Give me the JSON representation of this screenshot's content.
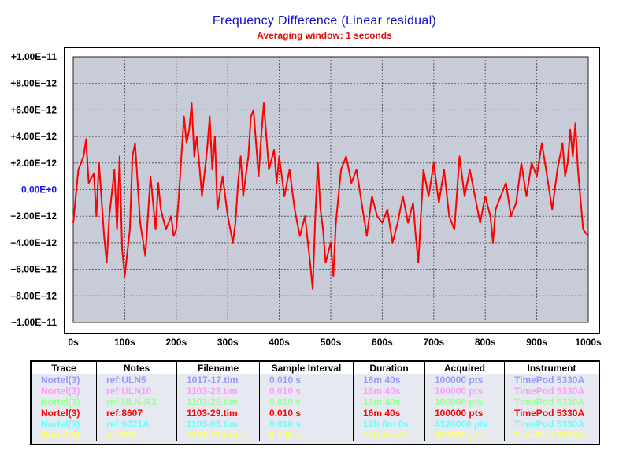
{
  "chart_data": {
    "type": "line",
    "title": "Frequency Difference  (Linear residual)",
    "subtitle": "Averaging window: 1 seconds",
    "xlabel": "",
    "ylabel": "",
    "xlim": [
      0,
      1000
    ],
    "ylim": [
      -1e-11,
      1e-11
    ],
    "grid": true,
    "x_ticks": [
      "0s",
      "100s",
      "200s",
      "300s",
      "400s",
      "500s",
      "600s",
      "700s",
      "800s",
      "900s",
      "1000s"
    ],
    "y_ticks": [
      "+1.00E−11",
      "+8.00E−12",
      "+6.00E−12",
      "+4.00E−12",
      "+2.00E−12",
      "0.00E+0",
      "−2.00E−12",
      "−4.00E−12",
      "−6.00E−12",
      "−8.00E−12",
      "−1.00E−11"
    ],
    "series": [
      {
        "name": "Nortel(3)",
        "color": "#ff0000",
        "x": [
          0,
          10,
          20,
          25,
          30,
          40,
          45,
          50,
          60,
          65,
          70,
          80,
          85,
          90,
          95,
          100,
          110,
          115,
          120,
          125,
          130,
          140,
          150,
          155,
          160,
          165,
          170,
          180,
          190,
          195,
          200,
          205,
          210,
          215,
          220,
          225,
          230,
          235,
          240,
          250,
          260,
          265,
          270,
          275,
          280,
          290,
          300,
          310,
          315,
          320,
          325,
          330,
          340,
          345,
          350,
          360,
          365,
          370,
          380,
          390,
          395,
          400,
          410,
          420,
          430,
          440,
          450,
          460,
          465,
          470,
          475,
          480,
          485,
          490,
          500,
          505,
          510,
          520,
          530,
          540,
          550,
          560,
          570,
          580,
          590,
          600,
          610,
          620,
          630,
          640,
          650,
          660,
          665,
          670,
          680,
          690,
          700,
          710,
          720,
          730,
          740,
          750,
          760,
          770,
          780,
          790,
          800,
          810,
          815,
          820,
          830,
          840,
          850,
          860,
          870,
          880,
          890,
          900,
          910,
          920,
          930,
          940,
          950,
          955,
          960,
          965,
          970,
          975,
          980,
          990,
          1000
        ],
        "y": [
          -2.5e-12,
          1.5e-12,
          2.5e-12,
          3.8e-12,
          5e-13,
          1.2e-12,
          -2e-12,
          2e-12,
          -3.5e-12,
          -5.5e-12,
          -2e-12,
          1.5e-12,
          -3e-12,
          2.5e-12,
          -4.5e-12,
          -6.5e-12,
          -3e-12,
          2.5e-12,
          3.5e-12,
          5e-13,
          -2.5e-12,
          -5e-12,
          1e-12,
          -1e-12,
          -3e-12,
          5e-13,
          -1.5e-12,
          -3e-12,
          -2e-12,
          -3.5e-12,
          -3e-12,
          -5e-13,
          2.5e-12,
          5.5e-12,
          3.5e-12,
          4.5e-12,
          6.5e-12,
          2.5e-12,
          4e-12,
          -5e-13,
          3e-12,
          5.5e-12,
          1.5e-12,
          4e-12,
          -1.5e-12,
          1e-12,
          -2e-12,
          -4e-12,
          -2.5e-12,
          5e-13,
          2.5e-12,
          -5e-13,
          2.5e-12,
          5.5e-12,
          6e-12,
          1e-12,
          4e-12,
          6.5e-12,
          1.5e-12,
          3e-12,
          5e-13,
          2.5e-12,
          -5e-13,
          1.5e-12,
          -1.5e-12,
          -3.5e-12,
          -2e-12,
          -5.5e-12,
          -7.5e-12,
          -2e-12,
          2e-12,
          -1.5e-12,
          -3e-12,
          -5.5e-12,
          -4e-12,
          -6.5e-12,
          -2.5e-12,
          1.5e-12,
          2.5e-12,
          5e-13,
          1.5e-12,
          -1e-12,
          -3.5e-12,
          -5e-13,
          -2e-12,
          -2.5e-12,
          -1.5e-12,
          -4e-12,
          -2.5e-12,
          -5e-13,
          -2.5e-12,
          -1e-12,
          -3.5e-12,
          -5.5e-12,
          1.5e-12,
          -5e-13,
          2e-12,
          -1e-12,
          1.5e-12,
          -2e-12,
          -3e-12,
          2.5e-12,
          -5e-13,
          1.5e-12,
          -5e-13,
          -2.5e-12,
          -5e-13,
          -2e-12,
          -4e-12,
          -1.5e-12,
          -5e-13,
          5e-13,
          -2e-12,
          -1e-12,
          2e-12,
          -5e-13,
          2e-12,
          1e-12,
          3.5e-12,
          1e-12,
          -1.5e-12,
          1.5e-12,
          3.5e-12,
          1e-12,
          2e-12,
          4.5e-12,
          2.5e-12,
          5e-12,
          1.5e-12,
          -3e-12,
          -3.5e-12
        ]
      }
    ]
  },
  "legend": {
    "headers": [
      "Trace",
      "Notes",
      "Filename",
      "Sample Interval",
      "Duration",
      "Acquired",
      "Instrument"
    ],
    "rows": [
      {
        "color": "#9999ff",
        "cells": [
          "Nortel(3)",
          "ref:ULN5",
          "1017-17.tim",
          "0.010 s",
          "16m 40s",
          "100000 pts",
          "TimePod 5330A"
        ]
      },
      {
        "color": "#ff99ff",
        "cells": [
          "Nortel(3)",
          "ref:ULN10",
          "1103-23.tim",
          "0.010 s",
          "16m 40s",
          "100000 pts",
          "TimePod 5330A"
        ]
      },
      {
        "color": "#99ff99",
        "cells": [
          "Nortel(3)",
          "ref:ULN-RX",
          "1103-25.tim",
          "0.010 s",
          "16m 40s",
          "100000 pts",
          "TimePod 5330A"
        ]
      },
      {
        "color": "#ff0000",
        "cells": [
          "Nortel(3)",
          "ref:8607",
          "1103-29.tim",
          "0.010 s",
          "16m 40s",
          "100000 pts",
          "TimePod 5330A"
        ]
      },
      {
        "color": "#66ffff",
        "cells": [
          "Nortel(3)",
          "ref:5071A",
          "1103-03.tim",
          "0.010 s",
          "12h 0m 0s",
          "4320000 pts",
          "TimePod 5330A"
        ]
      },
      {
        "color": "#ffff66",
        "cells": [
          "Nortel(3)",
          "ref:HM",
          "1103-27d.tim",
          "0.100 s",
          "12h 0m 0s",
          "432000 pts",
          "TimePod 5330A"
        ]
      }
    ]
  }
}
